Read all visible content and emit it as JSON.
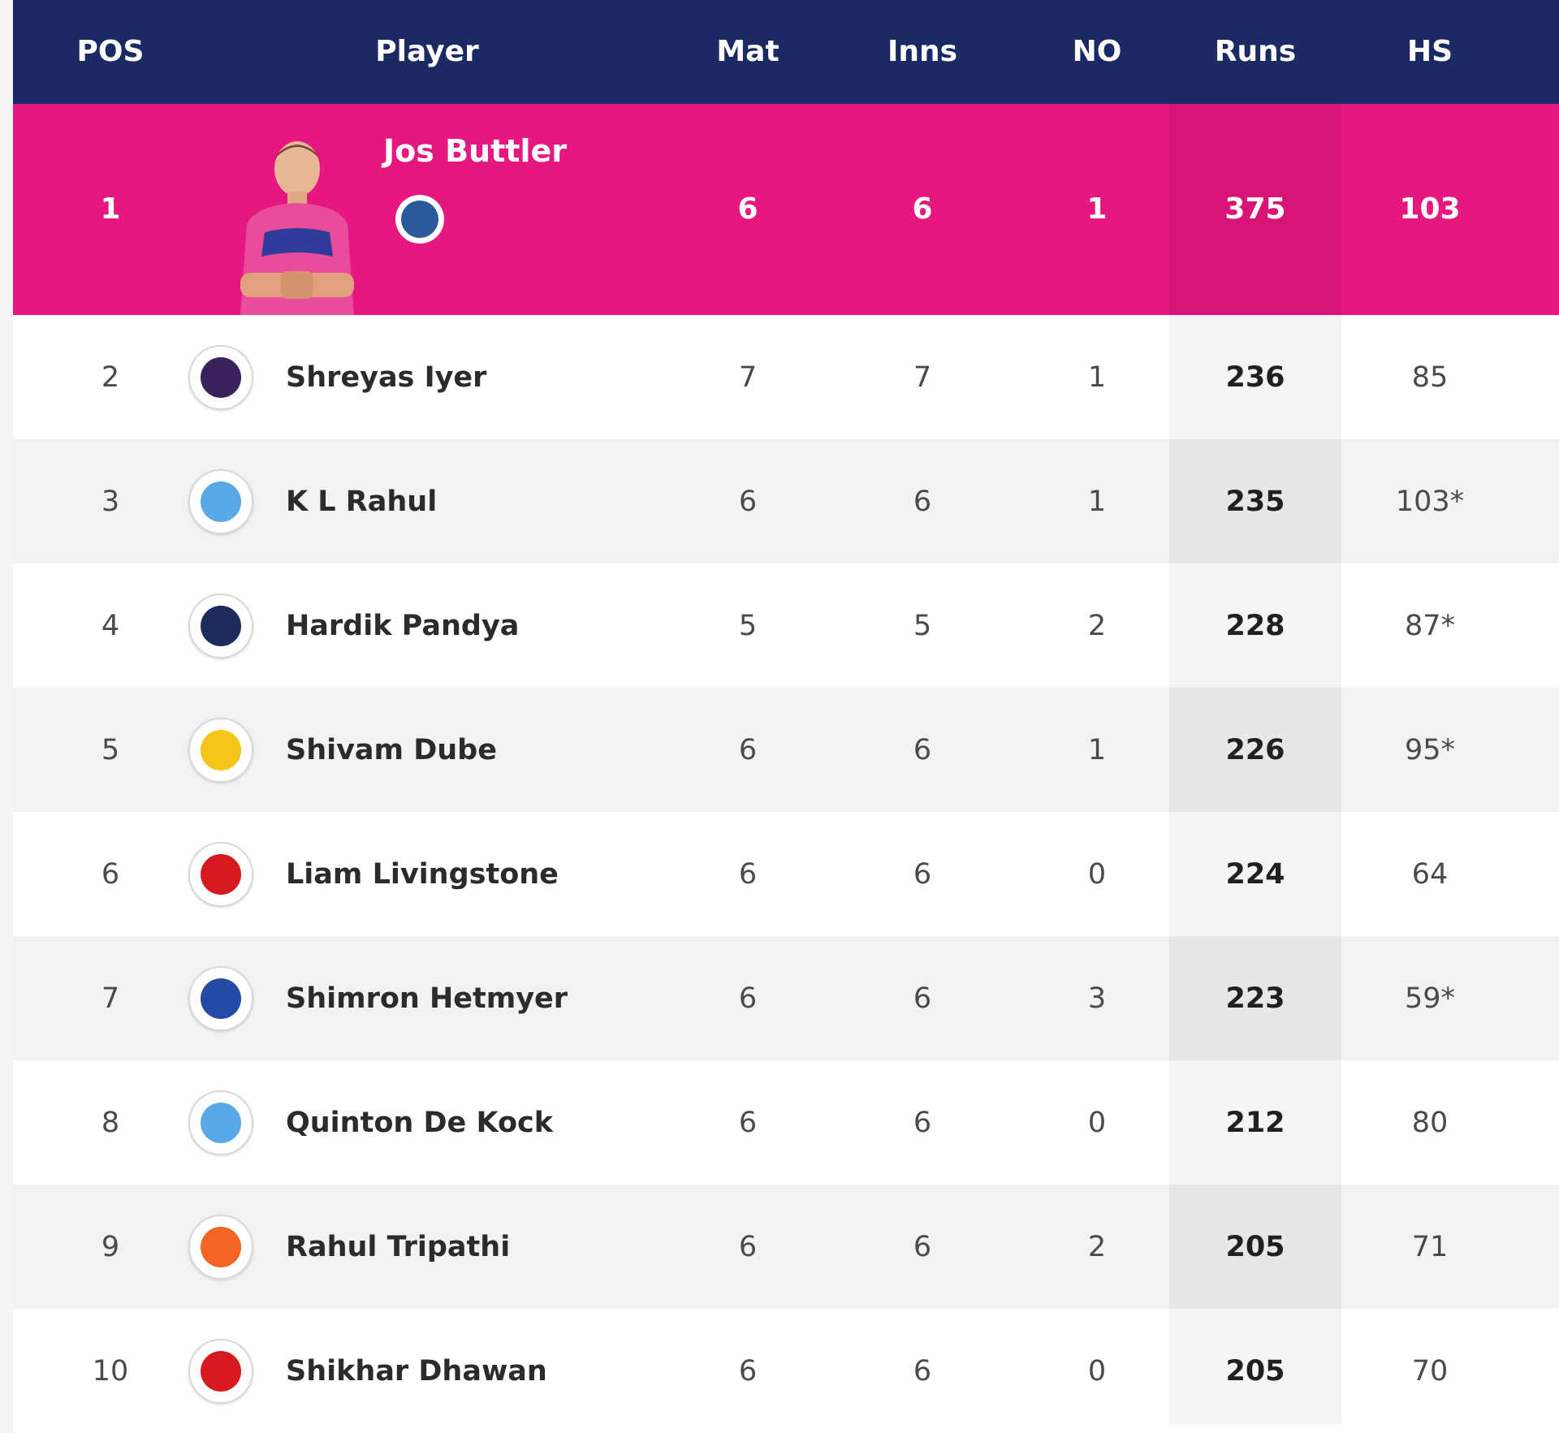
{
  "headers": {
    "pos": "POS",
    "player": "Player",
    "mat": "Mat",
    "inns": "Inns",
    "no": "NO",
    "runs": "Runs",
    "hs": "HS"
  },
  "leader": {
    "pos": "1",
    "name": "Jos Buttler",
    "team_icon": "rajasthan-royals-logo-icon",
    "mat": "6",
    "inns": "6",
    "no": "1",
    "runs": "375",
    "hs": "103"
  },
  "rows": [
    {
      "pos": "2",
      "name": "Shreyas Iyer",
      "team_icon": "kkr-logo-icon",
      "mat": "7",
      "inns": "7",
      "no": "1",
      "runs": "236",
      "hs": "85"
    },
    {
      "pos": "3",
      "name": "K L Rahul",
      "team_icon": "lsg-logo-icon",
      "mat": "6",
      "inns": "6",
      "no": "1",
      "runs": "235",
      "hs": "103*"
    },
    {
      "pos": "4",
      "name": "Hardik Pandya",
      "team_icon": "gt-logo-icon",
      "mat": "5",
      "inns": "5",
      "no": "2",
      "runs": "228",
      "hs": "87*"
    },
    {
      "pos": "5",
      "name": "Shivam Dube",
      "team_icon": "csk-logo-icon",
      "mat": "6",
      "inns": "6",
      "no": "1",
      "runs": "226",
      "hs": "95*"
    },
    {
      "pos": "6",
      "name": "Liam Livingstone",
      "team_icon": "pbks-logo-icon",
      "mat": "6",
      "inns": "6",
      "no": "0",
      "runs": "224",
      "hs": "64"
    },
    {
      "pos": "7",
      "name": "Shimron Hetmyer",
      "team_icon": "rr-logo-icon",
      "mat": "6",
      "inns": "6",
      "no": "3",
      "runs": "223",
      "hs": "59*"
    },
    {
      "pos": "8",
      "name": "Quinton De Kock",
      "team_icon": "lsg-logo-icon",
      "mat": "6",
      "inns": "6",
      "no": "0",
      "runs": "212",
      "hs": "80"
    },
    {
      "pos": "9",
      "name": "Rahul Tripathi",
      "team_icon": "srh-logo-icon",
      "mat": "6",
      "inns": "6",
      "no": "2",
      "runs": "205",
      "hs": "71"
    },
    {
      "pos": "10",
      "name": "Shikhar Dhawan",
      "team_icon": "pbks-logo-icon",
      "mat": "6",
      "inns": "6",
      "no": "0",
      "runs": "205",
      "hs": "70"
    }
  ],
  "colors": {
    "header_bg": "#1b2a63",
    "leader_bg": "#e6177f",
    "kkr-logo-icon": "#3a225d",
    "lsg-logo-icon": "#5aa9e6",
    "gt-logo-icon": "#1c2c5b",
    "csk-logo-icon": "#f5c518",
    "pbks-logo-icon": "#d71920",
    "rr-logo-icon": "#254aa5",
    "srh-logo-icon": "#f26522"
  }
}
